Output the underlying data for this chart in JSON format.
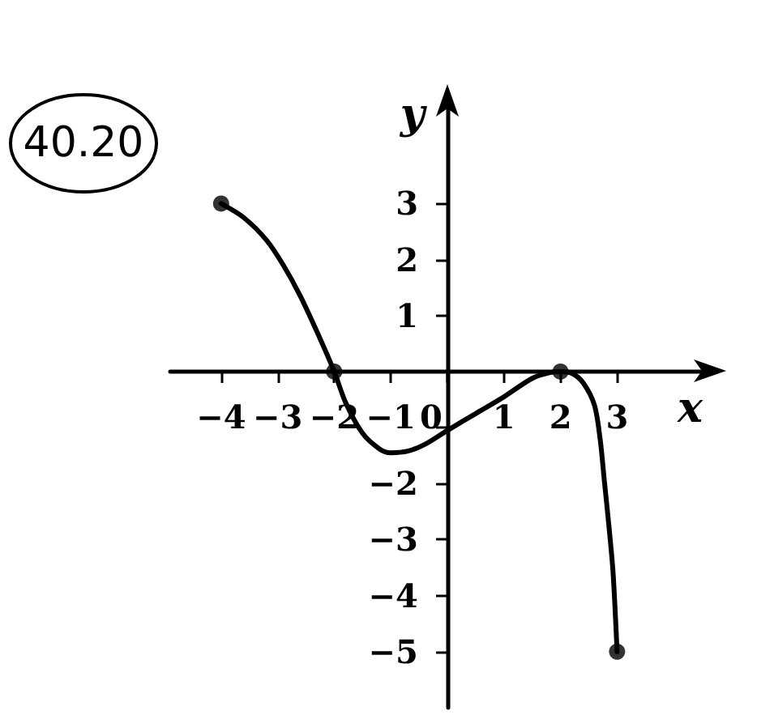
{
  "chart_data": {
    "type": "line",
    "annotations": [
      "40.20"
    ],
    "xlabel": "x",
    "ylabel": "y",
    "xlim": [
      -4.9,
      4.7
    ],
    "ylim": [
      -6,
      4.9
    ],
    "xticks": [
      -4,
      -3,
      -2,
      -1,
      0,
      1,
      2,
      3
    ],
    "yticks": [
      -5,
      -4,
      -3,
      -2,
      {
        "value": -1,
        "label": null
      },
      1,
      2,
      3
    ],
    "series": [
      {
        "type": "line",
        "color": "#000000",
        "marker": "none",
        "x": [
          -4,
          -3.6,
          -3.2,
          -2.9,
          -2.6,
          -2.3,
          -2,
          -1.8,
          -1.5,
          -1.2,
          -1,
          -0.7,
          -0.4,
          0,
          0.5,
          1,
          1.5,
          1.8,
          2,
          2.2,
          2.4,
          2.6,
          2.7,
          2.78,
          2.86,
          2.93,
          3
        ],
        "values": [
          3,
          2.75,
          2.35,
          1.9,
          1.35,
          0.7,
          0,
          -0.55,
          -1.1,
          -1.38,
          -1.45,
          -1.42,
          -1.3,
          -1.05,
          -0.75,
          -0.45,
          -0.12,
          -0.02,
          0,
          -0.03,
          -0.2,
          -0.6,
          -1.2,
          -2,
          -2.8,
          -3.6,
          -5
        ]
      },
      {
        "type": "scatter",
        "color": "#000000",
        "marker": "circle",
        "x": [
          -4,
          -2,
          2,
          3
        ],
        "values": [
          3,
          0,
          0,
          -5
        ]
      }
    ]
  }
}
